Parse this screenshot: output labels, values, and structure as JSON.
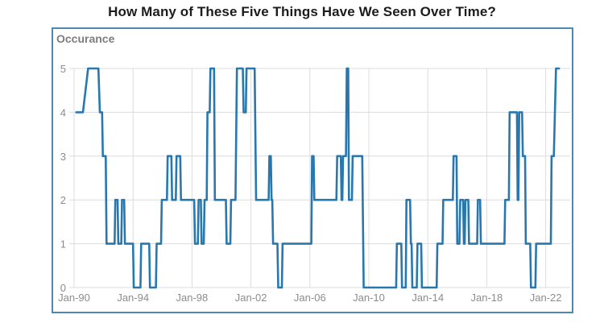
{
  "title": "How Many of These Five Things Have We Seen Over Time?",
  "colors": {
    "line": "#2878b0",
    "box_border": "#4e88b0",
    "grid": "#dcdcdc",
    "tick_label": "#8c8c8c",
    "y_axis_title": "#7d7d7d",
    "title": "#1c1c1c"
  },
  "chart_data": {
    "type": "line",
    "title": "How Many of These Five Things Have We Seen Over Time?",
    "xlabel": "",
    "ylabel": "Occurance",
    "grid": true,
    "legend": false,
    "x_range_years": [
      1990,
      2023.9
    ],
    "ylim": [
      0,
      5
    ],
    "y_ticks": [
      0,
      1,
      2,
      3,
      4,
      5
    ],
    "x_ticks": [
      {
        "year": 1990,
        "label": "Jan-90"
      },
      {
        "year": 1994,
        "label": "Jan-94"
      },
      {
        "year": 1998,
        "label": "Jan-98"
      },
      {
        "year": 2002,
        "label": "Jan-02"
      },
      {
        "year": 2006,
        "label": "Jan-06"
      },
      {
        "year": 2010,
        "label": "Jan-10"
      },
      {
        "year": 2014,
        "label": "Jan-14"
      },
      {
        "year": 2018,
        "label": "Jan-18"
      },
      {
        "year": 2022,
        "label": "Jan-22"
      }
    ],
    "series": [
      {
        "name": "Occurance",
        "points": [
          [
            1990.15,
            4
          ],
          [
            1990.6,
            4
          ],
          [
            1990.95,
            5
          ],
          [
            1991.65,
            5
          ],
          [
            1991.75,
            4
          ],
          [
            1991.9,
            4
          ],
          [
            1991.95,
            3
          ],
          [
            1992.15,
            3
          ],
          [
            1992.2,
            1
          ],
          [
            1992.75,
            1
          ],
          [
            1992.8,
            2
          ],
          [
            1992.95,
            2
          ],
          [
            1993.0,
            1
          ],
          [
            1993.2,
            1
          ],
          [
            1993.25,
            2
          ],
          [
            1993.4,
            2
          ],
          [
            1993.45,
            1
          ],
          [
            1994.0,
            1
          ],
          [
            1994.05,
            0
          ],
          [
            1994.5,
            0
          ],
          [
            1994.55,
            1
          ],
          [
            1995.1,
            1
          ],
          [
            1995.15,
            0
          ],
          [
            1995.55,
            0
          ],
          [
            1995.6,
            1
          ],
          [
            1995.9,
            1
          ],
          [
            1995.95,
            2
          ],
          [
            1996.3,
            2
          ],
          [
            1996.35,
            3
          ],
          [
            1996.6,
            3
          ],
          [
            1996.65,
            2
          ],
          [
            1996.9,
            2
          ],
          [
            1996.95,
            3
          ],
          [
            1997.2,
            3
          ],
          [
            1997.25,
            2
          ],
          [
            1998.15,
            2
          ],
          [
            1998.2,
            1
          ],
          [
            1998.4,
            1
          ],
          [
            1998.45,
            2
          ],
          [
            1998.6,
            2
          ],
          [
            1998.65,
            1
          ],
          [
            1998.8,
            1
          ],
          [
            1998.85,
            2
          ],
          [
            1999.0,
            2
          ],
          [
            1999.05,
            4
          ],
          [
            1999.2,
            4
          ],
          [
            1999.25,
            5
          ],
          [
            1999.5,
            5
          ],
          [
            1999.55,
            2
          ],
          [
            2000.3,
            2
          ],
          [
            2000.35,
            1
          ],
          [
            2000.6,
            1
          ],
          [
            2000.65,
            2
          ],
          [
            2000.95,
            2
          ],
          [
            2001.05,
            5
          ],
          [
            2001.45,
            5
          ],
          [
            2001.5,
            4
          ],
          [
            2001.65,
            4
          ],
          [
            2001.7,
            5
          ],
          [
            2002.25,
            5
          ],
          [
            2002.35,
            2
          ],
          [
            2003.2,
            2
          ],
          [
            2003.25,
            3
          ],
          [
            2003.35,
            3
          ],
          [
            2003.4,
            2
          ],
          [
            2003.45,
            2
          ],
          [
            2003.5,
            1
          ],
          [
            2003.8,
            1
          ],
          [
            2003.85,
            0
          ],
          [
            2004.1,
            0
          ],
          [
            2004.15,
            1
          ],
          [
            2006.1,
            1
          ],
          [
            2006.15,
            3
          ],
          [
            2006.25,
            3
          ],
          [
            2006.3,
            2
          ],
          [
            2007.8,
            2
          ],
          [
            2007.85,
            3
          ],
          [
            2008.1,
            3
          ],
          [
            2008.15,
            2
          ],
          [
            2008.2,
            2
          ],
          [
            2008.25,
            3
          ],
          [
            2008.45,
            3
          ],
          [
            2008.5,
            5
          ],
          [
            2008.6,
            5
          ],
          [
            2008.65,
            2
          ],
          [
            2008.85,
            2
          ],
          [
            2008.9,
            3
          ],
          [
            2009.55,
            3
          ],
          [
            2009.65,
            0
          ],
          [
            2011.85,
            0
          ],
          [
            2011.9,
            1
          ],
          [
            2012.2,
            1
          ],
          [
            2012.25,
            0
          ],
          [
            2012.5,
            0
          ],
          [
            2012.55,
            2
          ],
          [
            2012.8,
            2
          ],
          [
            2012.85,
            1
          ],
          [
            2012.9,
            1
          ],
          [
            2012.95,
            0
          ],
          [
            2013.25,
            0
          ],
          [
            2013.3,
            1
          ],
          [
            2013.55,
            1
          ],
          [
            2013.6,
            0
          ],
          [
            2014.6,
            0
          ],
          [
            2014.65,
            1
          ],
          [
            2015.0,
            1
          ],
          [
            2015.05,
            2
          ],
          [
            2015.7,
            2
          ],
          [
            2015.75,
            3
          ],
          [
            2015.95,
            3
          ],
          [
            2016.0,
            1
          ],
          [
            2016.15,
            1
          ],
          [
            2016.2,
            2
          ],
          [
            2016.4,
            2
          ],
          [
            2016.45,
            1
          ],
          [
            2016.5,
            1
          ],
          [
            2016.55,
            2
          ],
          [
            2016.75,
            2
          ],
          [
            2016.8,
            1
          ],
          [
            2017.35,
            1
          ],
          [
            2017.4,
            2
          ],
          [
            2017.55,
            2
          ],
          [
            2017.6,
            1
          ],
          [
            2019.2,
            1
          ],
          [
            2019.25,
            2
          ],
          [
            2019.5,
            2
          ],
          [
            2019.55,
            4
          ],
          [
            2020.05,
            4
          ],
          [
            2020.1,
            2
          ],
          [
            2020.15,
            2
          ],
          [
            2020.2,
            4
          ],
          [
            2020.4,
            4
          ],
          [
            2020.45,
            3
          ],
          [
            2020.6,
            3
          ],
          [
            2020.65,
            1
          ],
          [
            2020.95,
            1
          ],
          [
            2021.0,
            0
          ],
          [
            2021.3,
            0
          ],
          [
            2021.35,
            1
          ],
          [
            2022.35,
            1
          ],
          [
            2022.4,
            3
          ],
          [
            2022.55,
            3
          ],
          [
            2022.7,
            5
          ],
          [
            2022.9,
            5
          ]
        ]
      }
    ]
  }
}
